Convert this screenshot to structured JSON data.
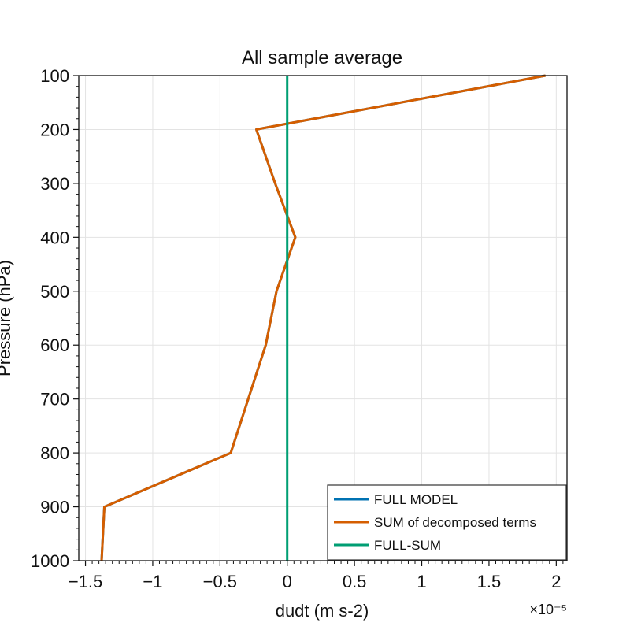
{
  "chart_data": {
    "type": "line",
    "title": "All sample average",
    "xlabel": "dudt (m s-2)",
    "ylabel": "Pressure (hPa)",
    "x_scale_exponent_label": "×10⁻⁵",
    "xlim": [
      -1.55,
      2.08
    ],
    "ylim": [
      1000,
      100
    ],
    "y_inverted": true,
    "grid": true,
    "legend_position": "lower-right",
    "x_ticks": [
      -1.5,
      -1,
      -0.5,
      0,
      0.5,
      1,
      1.5,
      2
    ],
    "x_tick_labels": [
      "−1.5",
      "−1",
      "−0.5",
      "0",
      "0.5",
      "1",
      "1.5",
      "2"
    ],
    "y_ticks": [
      100,
      200,
      300,
      400,
      500,
      600,
      700,
      800,
      900,
      1000
    ],
    "y_tick_labels": [
      "100",
      "200",
      "300",
      "400",
      "500",
      "600",
      "700",
      "800",
      "900",
      "1000"
    ],
    "pressure": [
      100,
      200,
      300,
      400,
      500,
      600,
      700,
      800,
      900,
      1000
    ],
    "series": [
      {
        "name": "FULL MODEL",
        "color": "#0072B2",
        "x": [
          1.92,
          -0.23,
          -0.09,
          0.06,
          -0.08,
          -0.16,
          -0.29,
          -0.42,
          -1.36,
          -1.38
        ]
      },
      {
        "name": "SUM of decomposed terms",
        "color": "#D55E00",
        "x": [
          1.92,
          -0.23,
          -0.09,
          0.06,
          -0.08,
          -0.16,
          -0.29,
          -0.42,
          -1.36,
          -1.38
        ]
      },
      {
        "name": "FULL-SUM",
        "color": "#009E73",
        "x": [
          0,
          0,
          0,
          0,
          0,
          0,
          0,
          0,
          0,
          0
        ]
      }
    ]
  }
}
